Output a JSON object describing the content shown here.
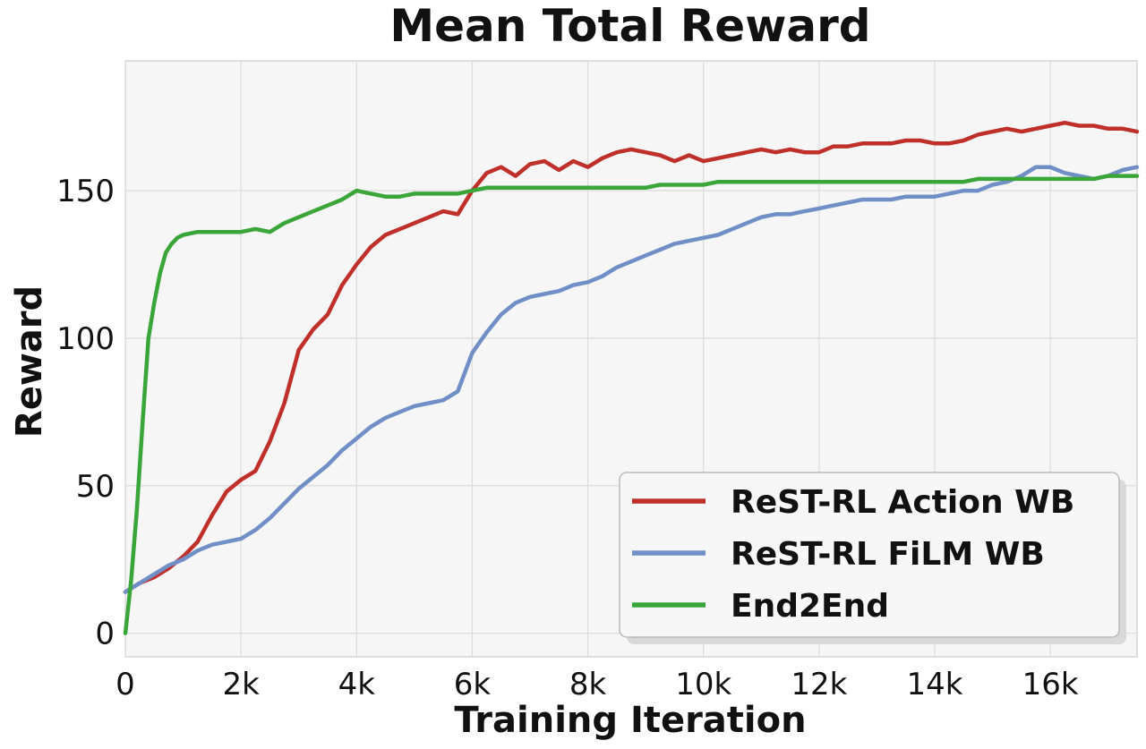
{
  "chart_data": {
    "type": "line",
    "title": "Mean Total Reward",
    "xlabel": "Training Iteration",
    "ylabel": "Reward",
    "xlim": [
      0,
      17500
    ],
    "ylim": [
      -8,
      194
    ],
    "xticks": [
      0,
      2000,
      4000,
      6000,
      8000,
      10000,
      12000,
      14000,
      16000
    ],
    "xtick_labels": [
      "0",
      "2k",
      "4k",
      "6k",
      "8k",
      "10k",
      "12k",
      "14k",
      "16k"
    ],
    "yticks": [
      0,
      50,
      100,
      150
    ],
    "ytick_labels": [
      "0",
      "50",
      "100",
      "150"
    ],
    "grid": true,
    "legend_position": "lower-right",
    "series": [
      {
        "name": "ReST-RL Action WB",
        "color": "#c0302a",
        "x": [
          0,
          250,
          500,
          750,
          1000,
          1250,
          1500,
          1750,
          2000,
          2250,
          2500,
          2750,
          3000,
          3250,
          3500,
          3750,
          4000,
          4250,
          4500,
          4750,
          5000,
          5250,
          5500,
          5750,
          6000,
          6250,
          6500,
          6750,
          7000,
          7250,
          7500,
          7750,
          8000,
          8250,
          8500,
          8750,
          9000,
          9250,
          9500,
          9750,
          10000,
          10250,
          10500,
          10750,
          11000,
          11250,
          11500,
          11750,
          12000,
          12250,
          12500,
          12750,
          13000,
          13250,
          13500,
          13750,
          14000,
          14250,
          14500,
          14750,
          15000,
          15250,
          15500,
          15750,
          16000,
          16250,
          16500,
          16750,
          17000,
          17250,
          17500
        ],
        "y": [
          14,
          17,
          19,
          22,
          26,
          31,
          40,
          48,
          52,
          55,
          65,
          78,
          96,
          103,
          108,
          118,
          125,
          131,
          135,
          137,
          139,
          141,
          143,
          142,
          150,
          156,
          158,
          155,
          159,
          160,
          157,
          160,
          158,
          161,
          163,
          164,
          163,
          162,
          160,
          162,
          160,
          161,
          162,
          163,
          164,
          163,
          164,
          163,
          163,
          165,
          165,
          166,
          166,
          166,
          167,
          167,
          166,
          166,
          167,
          169,
          170,
          171,
          170,
          171,
          172,
          173,
          172,
          172,
          171,
          171,
          170
        ]
      },
      {
        "name": "ReST-RL FiLM WB",
        "color": "#6f8fc6",
        "x": [
          0,
          250,
          500,
          750,
          1000,
          1250,
          1500,
          1750,
          2000,
          2250,
          2500,
          2750,
          3000,
          3250,
          3500,
          3750,
          4000,
          4250,
          4500,
          4750,
          5000,
          5250,
          5500,
          5750,
          6000,
          6250,
          6500,
          6750,
          7000,
          7250,
          7500,
          7750,
          8000,
          8250,
          8500,
          8750,
          9000,
          9250,
          9500,
          9750,
          10000,
          10250,
          10500,
          10750,
          11000,
          11250,
          11500,
          11750,
          12000,
          12250,
          12500,
          12750,
          13000,
          13250,
          13500,
          13750,
          14000,
          14250,
          14500,
          14750,
          15000,
          15250,
          15500,
          15750,
          16000,
          16250,
          16500,
          16750,
          17000,
          17250,
          17500
        ],
        "y": [
          14,
          17,
          20,
          23,
          25,
          28,
          30,
          31,
          32,
          35,
          39,
          44,
          49,
          53,
          57,
          62,
          66,
          70,
          73,
          75,
          77,
          78,
          79,
          82,
          95,
          102,
          108,
          112,
          114,
          115,
          116,
          118,
          119,
          121,
          124,
          126,
          128,
          130,
          132,
          133,
          134,
          135,
          137,
          139,
          141,
          142,
          142,
          143,
          144,
          145,
          146,
          147,
          147,
          147,
          148,
          148,
          148,
          149,
          150,
          150,
          152,
          153,
          155,
          158,
          158,
          156,
          155,
          154,
          155,
          157,
          158
        ]
      },
      {
        "name": "End2End",
        "color": "#3aa63a",
        "x": [
          0,
          100,
          200,
          300,
          400,
          500,
          600,
          700,
          800,
          900,
          1000,
          1250,
          1500,
          1750,
          2000,
          2250,
          2500,
          2750,
          3000,
          3250,
          3500,
          3750,
          4000,
          4250,
          4500,
          4750,
          5000,
          5250,
          5500,
          5750,
          6000,
          6250,
          6500,
          6750,
          7000,
          7250,
          7500,
          7750,
          8000,
          8250,
          8500,
          8750,
          9000,
          9250,
          9500,
          9750,
          10000,
          10250,
          10500,
          10750,
          11000,
          11250,
          11500,
          11750,
          12000,
          12250,
          12500,
          12750,
          13000,
          13250,
          13500,
          13750,
          14000,
          14250,
          14500,
          14750,
          15000,
          15250,
          15500,
          15750,
          16000,
          16250,
          16500,
          16750,
          17000,
          17250,
          17500
        ],
        "y": [
          0,
          18,
          42,
          72,
          100,
          112,
          122,
          129,
          132,
          134,
          135,
          136,
          136,
          136,
          136,
          137,
          136,
          139,
          141,
          143,
          145,
          147,
          150,
          149,
          148,
          148,
          149,
          149,
          149,
          149,
          150,
          151,
          151,
          151,
          151,
          151,
          151,
          151,
          151,
          151,
          151,
          151,
          151,
          152,
          152,
          152,
          152,
          153,
          153,
          153,
          153,
          153,
          153,
          153,
          153,
          153,
          153,
          153,
          153,
          153,
          153,
          153,
          153,
          153,
          153,
          154,
          154,
          154,
          154,
          154,
          154,
          154,
          154,
          154,
          155,
          155,
          155
        ]
      }
    ]
  }
}
